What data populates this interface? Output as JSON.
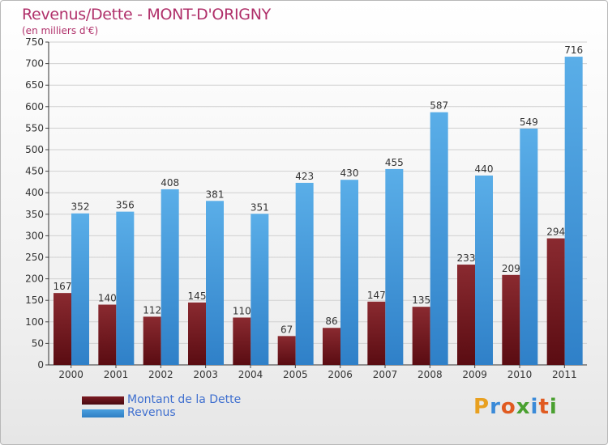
{
  "title": "Revenus/Dette - MONT-D'ORIGNY",
  "subtitle": "(en milliers d'€)",
  "legend": {
    "dette_label": "Montant de la Dette",
    "revenus_label": "Revenus"
  },
  "logo_text": "Proxiti",
  "colors": {
    "dette": "#7a1a22",
    "revenus": "#4a9fdf",
    "title": "#b0306a",
    "legend_text": "#3f6fcf"
  },
  "chart_data": {
    "type": "bar",
    "title": "Revenus/Dette - MONT-D'ORIGNY",
    "subtitle": "(en milliers d'€)",
    "categories": [
      "2000",
      "2001",
      "2002",
      "2003",
      "2004",
      "2005",
      "2006",
      "2007",
      "2008",
      "2009",
      "2010",
      "2011"
    ],
    "series": [
      {
        "name": "Montant de la Dette",
        "values": [
          167,
          140,
          112,
          145,
          110,
          67,
          86,
          147,
          135,
          233,
          209,
          294
        ]
      },
      {
        "name": "Revenus",
        "values": [
          352,
          356,
          408,
          381,
          351,
          423,
          430,
          455,
          587,
          440,
          549,
          716
        ]
      }
    ],
    "ylim": [
      0,
      750
    ],
    "yticks": [
      0,
      50,
      100,
      150,
      200,
      250,
      300,
      350,
      400,
      450,
      500,
      550,
      600,
      650,
      700,
      750
    ],
    "grid": true,
    "legend_position": "bottom-left"
  }
}
